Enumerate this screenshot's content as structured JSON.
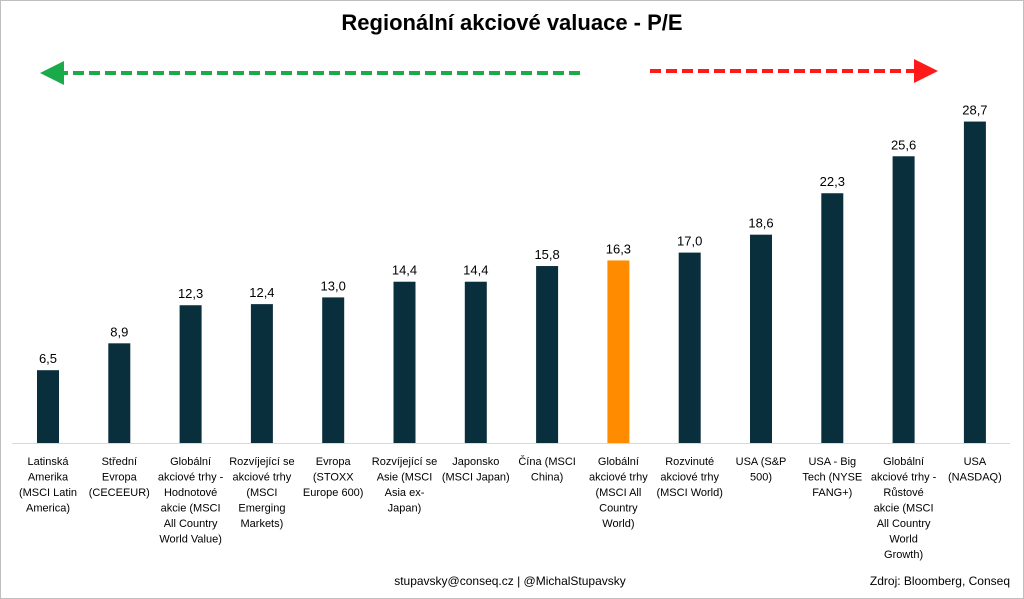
{
  "chart_data": {
    "type": "bar",
    "title": "Regionální akciové valuace - P/E",
    "categories": [
      [
        "Latinská",
        "Amerika",
        "(MSCI Latin",
        "America)"
      ],
      [
        "Střední",
        "Evropa",
        "(CECEEUR)"
      ],
      [
        "Globální",
        "akciové trhy -",
        "Hodnotové",
        "akcie (MSCI",
        "All Country",
        "World Value)"
      ],
      [
        "Rozvíjející se",
        "akciové trhy",
        "(MSCI",
        "Emerging",
        "Markets)"
      ],
      [
        "Evropa",
        "(STOXX",
        "Europe 600)"
      ],
      [
        "Rozvíjející se",
        "Asie (MSCI",
        "Asia ex-",
        "Japan)"
      ],
      [
        "Japonsko",
        "(MSCI Japan)"
      ],
      [
        "Čína (MSCI",
        "China)"
      ],
      [
        "Globální",
        "akciové trhy",
        "(MSCI All",
        "Country",
        "World)"
      ],
      [
        "Rozvinuté",
        "akciové trhy",
        "(MSCI World)"
      ],
      [
        "USA (S&P",
        "500)"
      ],
      [
        "USA - Big",
        "Tech (NYSE",
        "FANG+)"
      ],
      [
        "Globální",
        "akciové trhy -",
        "Růstové",
        "akcie (MSCI",
        "All Country",
        "World",
        "Growth)"
      ],
      [
        "USA",
        "(NASDAQ)"
      ]
    ],
    "values": [
      6.5,
      8.9,
      12.3,
      12.4,
      13.0,
      14.4,
      14.4,
      15.8,
      16.3,
      17.0,
      18.6,
      22.3,
      25.6,
      28.7
    ],
    "value_labels": [
      "6,5",
      "8,9",
      "12,3",
      "12,4",
      "13,0",
      "14,4",
      "14,4",
      "15,8",
      "16,3",
      "17,0",
      "18,6",
      "22,3",
      "25,6",
      "28,7"
    ],
    "highlight_index": 8,
    "colors": {
      "bar": "#0a2f3c",
      "highlight": "#ff8c00",
      "arrow_left": "#1aaa4a",
      "arrow_right": "#ff1a1a"
    },
    "ylim": [
      0,
      30
    ],
    "grid": false,
    "legend": "none"
  },
  "footer": {
    "contact": "stupavsky@conseq.cz  |  @MichalStupavsky",
    "source": "Zdroj: Bloomberg, Conseq"
  }
}
